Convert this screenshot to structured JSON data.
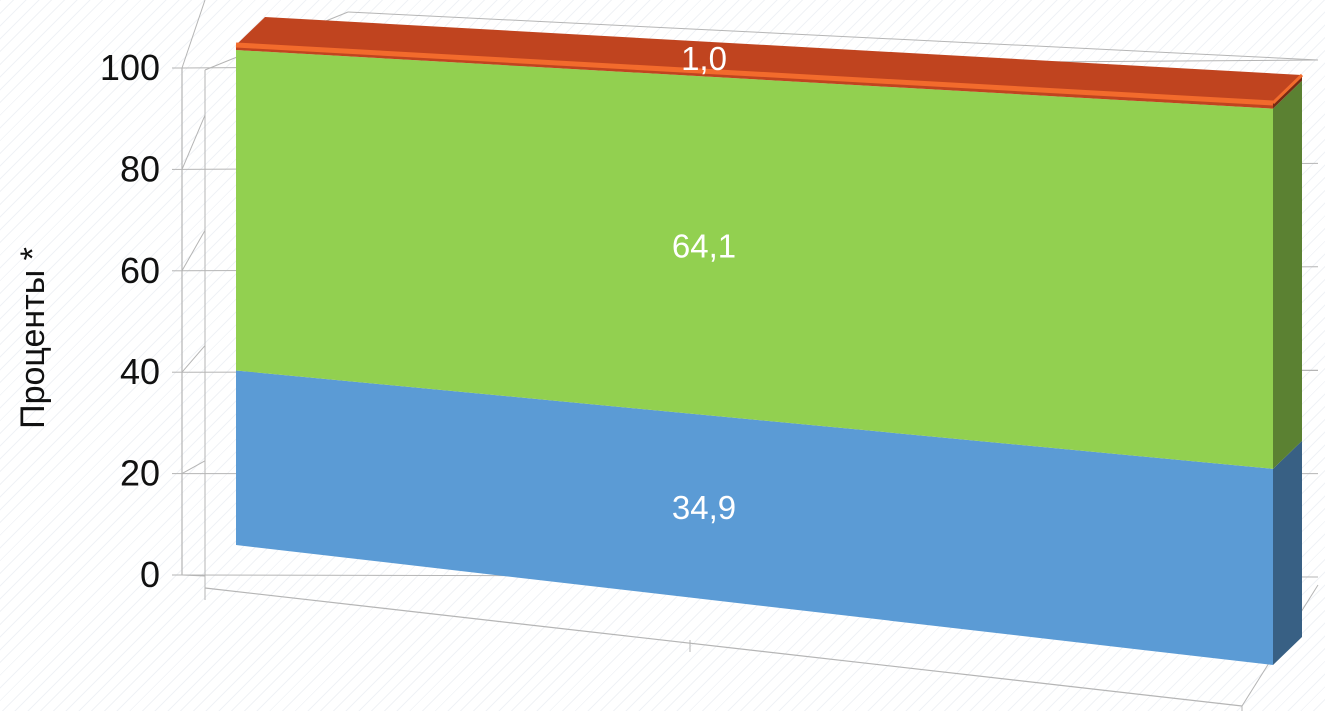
{
  "chart_data": {
    "type": "bar",
    "subtype": "3d-stacked-100",
    "categories": [
      ""
    ],
    "series": [
      {
        "values": [
          34.9
        ],
        "label": "34,9",
        "color": "#5b9bd5"
      },
      {
        "values": [
          64.1
        ],
        "label": "64,1",
        "color": "#92d050"
      },
      {
        "values": [
          1.0
        ],
        "label": "1,0",
        "color": "#c0441f"
      }
    ],
    "title": "",
    "xlabel": "",
    "ylabel": "Проценты *",
    "ylim": [
      0,
      100
    ],
    "yticks": [
      0,
      20,
      40,
      60,
      80,
      100
    ],
    "ytick_labels": [
      "0",
      "20",
      "40",
      "60",
      "80",
      "100"
    ],
    "grid": true,
    "legend": "none"
  }
}
